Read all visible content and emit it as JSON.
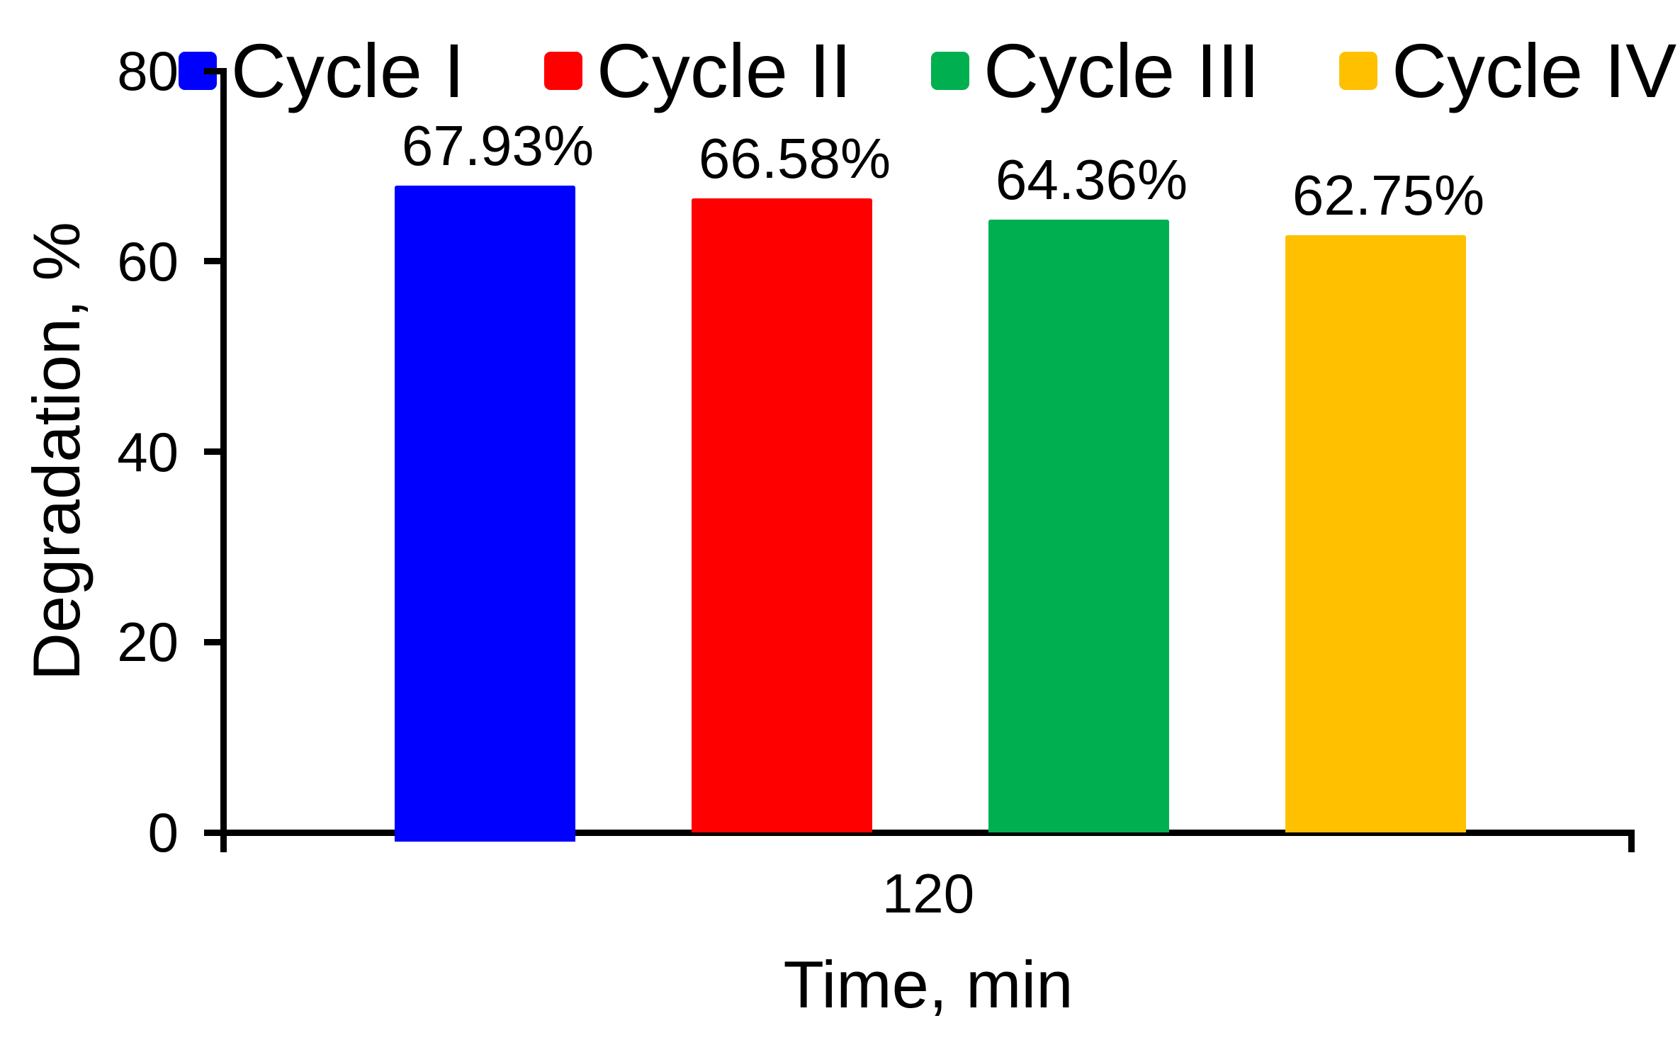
{
  "chart_data": {
    "type": "bar",
    "title": "",
    "xlabel": "Time, min",
    "ylabel": "Degradation, %",
    "x_categories": [
      "120"
    ],
    "ylim": [
      0,
      80
    ],
    "y_ticks": [
      0,
      20,
      40,
      60,
      80
    ],
    "grid": false,
    "legend_position": "top",
    "series": [
      {
        "name": "Cycle I",
        "color": "#0000FF",
        "values": [
          67.93
        ],
        "data_label": "67.93%"
      },
      {
        "name": "Cycle II",
        "color": "#FF0000",
        "values": [
          66.58
        ],
        "data_label": "66.58%"
      },
      {
        "name": "Cycle III",
        "color": "#00B050",
        "values": [
          64.36
        ],
        "data_label": "64.36%"
      },
      {
        "name": "Cycle IV",
        "color": "#FFC000",
        "values": [
          62.75
        ],
        "data_label": "62.75%"
      }
    ]
  },
  "colors": {
    "background": "#FFFFFF",
    "axis": "#000000",
    "text": "#000000"
  }
}
